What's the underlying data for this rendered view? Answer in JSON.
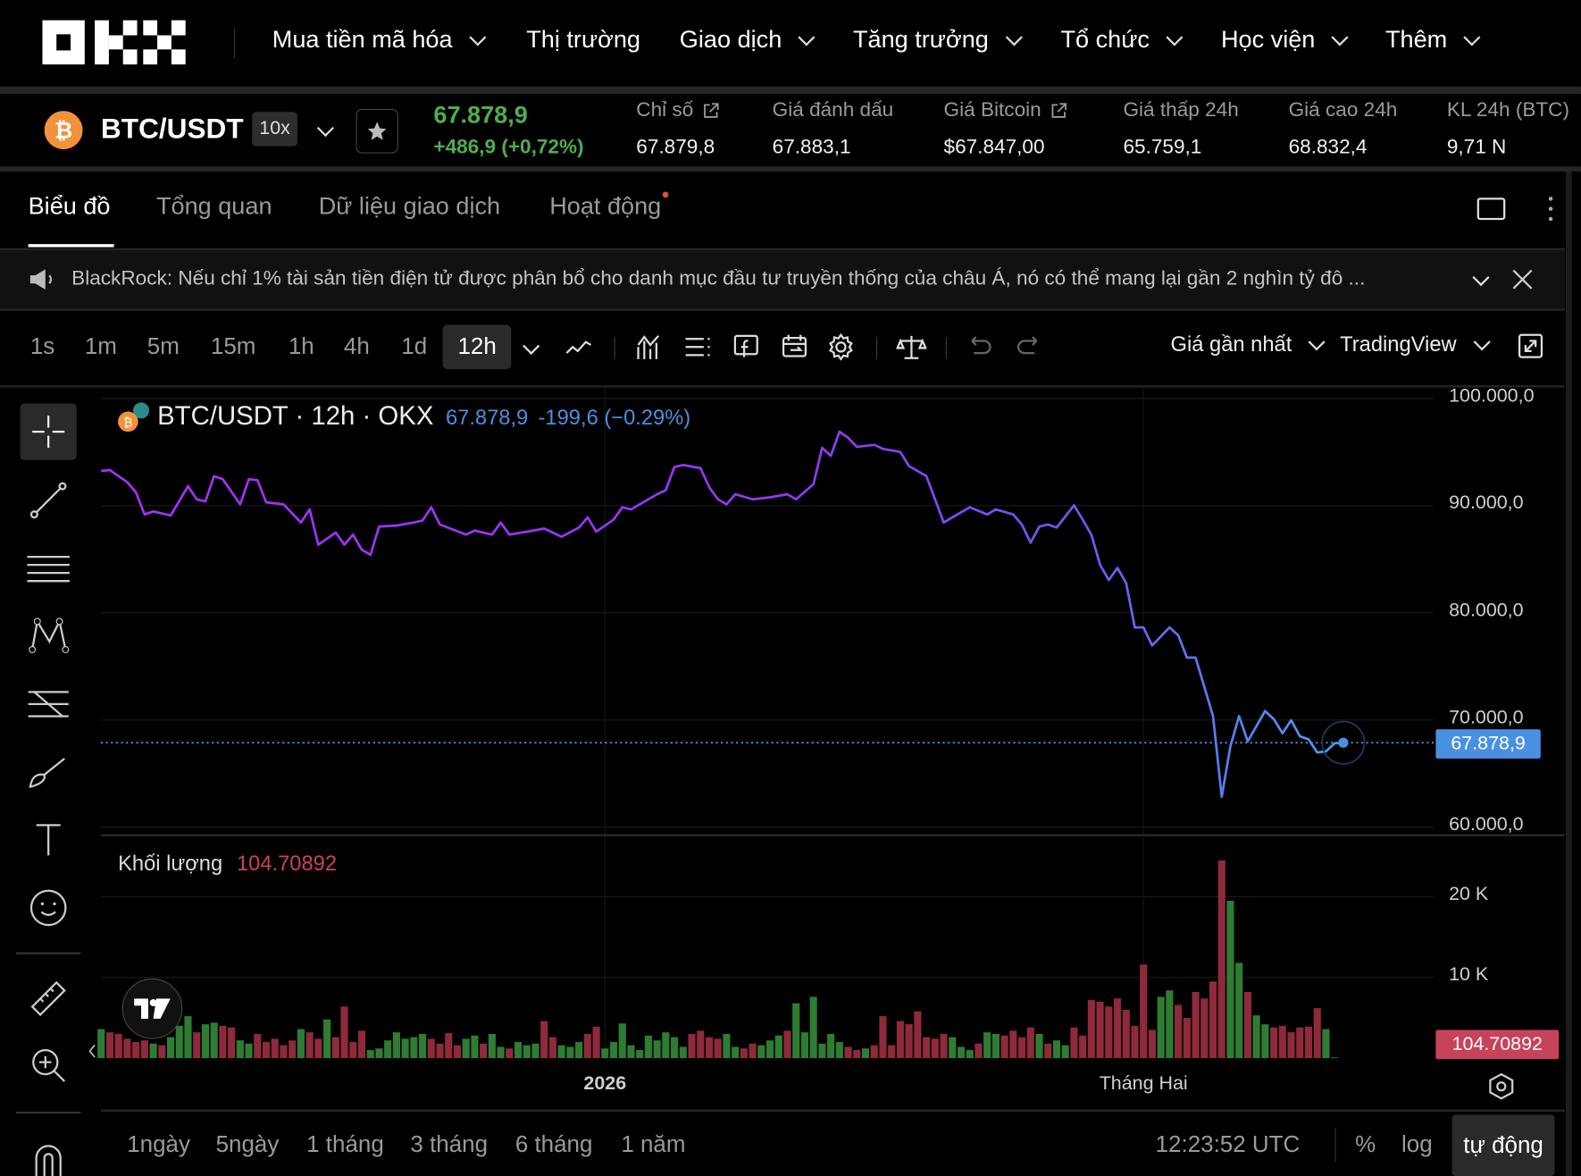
{
  "nav": {
    "logo": "OKX",
    "items": [
      {
        "label": "Mua tiền mã hóa",
        "dropdown": true
      },
      {
        "label": "Thị trường",
        "dropdown": false
      },
      {
        "label": "Giao dịch",
        "dropdown": true
      },
      {
        "label": "Tăng trưởng",
        "dropdown": true
      },
      {
        "label": "Tổ chức",
        "dropdown": true
      },
      {
        "label": "Học viện",
        "dropdown": true
      },
      {
        "label": "Thêm",
        "dropdown": true
      }
    ]
  },
  "ticker": {
    "pair": "BTC/USDT",
    "leverage": "10x",
    "price": "67.878,9",
    "change": "+486,9 (+0,72%)",
    "stats": [
      {
        "label": "Chỉ số",
        "value": "67.879,8",
        "external": true
      },
      {
        "label": "Giá đánh dấu",
        "value": "67.883,1",
        "external": false
      },
      {
        "label": "Giá Bitcoin",
        "value": "$67.847,00",
        "external": true
      },
      {
        "label": "Giá thấp 24h",
        "value": "65.759,1",
        "external": false
      },
      {
        "label": "Giá cao 24h",
        "value": "68.832,4",
        "external": false
      },
      {
        "label": "KL 24h (BTC)",
        "value": "9,71 N",
        "external": false
      }
    ]
  },
  "tabs": [
    {
      "label": "Biểu đồ",
      "active": true
    },
    {
      "label": "Tổng quan",
      "active": false
    },
    {
      "label": "Dữ liệu giao dịch",
      "active": false
    },
    {
      "label": "Hoạt động",
      "active": false,
      "dot": true
    }
  ],
  "announcement": {
    "text": "BlackRock: Nếu chỉ 1% tài sản tiền điện tử được phân bổ cho danh mục đầu tư truyền thống của châu Á, nó có thể mang lại gần 2 nghìn tỷ đô ..."
  },
  "toolbar": {
    "intervals": [
      "1s",
      "1m",
      "5m",
      "15m",
      "1h",
      "4h",
      "1d",
      "12h"
    ],
    "selected_interval": "12h",
    "price_type": "Giá gần nhất",
    "chart_provider": "TradingView"
  },
  "chart": {
    "legend_title": "BTC/USDT · 12h · OKX",
    "legend_price": "67.878,9",
    "legend_change": "-199,6 (−0.29%)",
    "price_axis_labels": [
      "100.000,0",
      "90.000,0",
      "80.000,0",
      "70.000,0",
      "60.000,0"
    ],
    "last_price_label": "67.878,9",
    "volume_title": "Khối lượng",
    "volume_value": "104.70892",
    "volume_axis_labels": [
      "20 K",
      "10 K"
    ],
    "time_axis_labels": [
      "2026",
      "Tháng Hai"
    ],
    "colors": {
      "line_start": "#a431f5",
      "line_end": "#4a9ff0",
      "last_price": "#4a90e2",
      "volume_up": "#2e7d32",
      "volume_down": "#8e2a3b",
      "volume_badge": "#c7435a"
    }
  },
  "chart_data": [
    {
      "type": "line",
      "title": "BTC/USDT · 12h · OKX",
      "ylim": [
        60000,
        100000
      ],
      "yticks": [
        60000,
        70000,
        80000,
        90000,
        100000
      ],
      "xticks": [
        "2026-01-01",
        "2026-02-01"
      ],
      "grid": true,
      "series": [
        {
          "name": "BTC/USDT",
          "points": [
            [
              "2025-12-03T00:00",
              93224
            ],
            [
              "2025-12-03T12:00",
              93318
            ],
            [
              "2025-12-04T12:00",
              92190
            ],
            [
              "2025-12-05T00:00",
              91250
            ],
            [
              "2025-12-05T12:00",
              89180
            ],
            [
              "2025-12-06T00:00",
              89460
            ],
            [
              "2025-12-07T00:00",
              89080
            ],
            [
              "2025-12-08T00:00",
              91810
            ],
            [
              "2025-12-08T12:00",
              90590
            ],
            [
              "2025-12-09T00:00",
              90400
            ],
            [
              "2025-12-09T12:00",
              92750
            ],
            [
              "2025-12-10T00:00",
              92470
            ],
            [
              "2025-12-11T00:00",
              90120
            ],
            [
              "2025-12-11T12:00",
              92470
            ],
            [
              "2025-12-12T00:00",
              92380
            ],
            [
              "2025-12-12T12:00",
              90310
            ],
            [
              "2025-12-13T12:00",
              90120
            ],
            [
              "2025-12-14T12:00",
              88420
            ],
            [
              "2025-12-15T00:00",
              89650
            ],
            [
              "2025-12-15T12:00",
              86350
            ],
            [
              "2025-12-16T12:00",
              87480
            ],
            [
              "2025-12-17T00:00",
              86350
            ],
            [
              "2025-12-17T12:00",
              87290
            ],
            [
              "2025-12-18T00:00",
              85880
            ],
            [
              "2025-12-18T12:00",
              85410
            ],
            [
              "2025-12-19T00:00",
              88050
            ],
            [
              "2025-12-20T00:00",
              88140
            ],
            [
              "2025-12-21T00:00",
              88420
            ],
            [
              "2025-12-21T12:00",
              88610
            ],
            [
              "2025-12-22T00:00",
              89840
            ],
            [
              "2025-12-22T12:00",
              88240
            ],
            [
              "2025-12-24T00:00",
              87290
            ],
            [
              "2025-12-24T12:00",
              87670
            ],
            [
              "2025-12-25T12:00",
              87290
            ],
            [
              "2025-12-26T00:00",
              88420
            ],
            [
              "2025-12-26T12:00",
              87290
            ],
            [
              "2025-12-27T12:00",
              87570
            ],
            [
              "2025-12-28T12:00",
              87860
            ],
            [
              "2025-12-29T12:00",
              87100
            ],
            [
              "2025-12-30T12:00",
              87950
            ],
            [
              "2025-12-31T00:00",
              88900
            ],
            [
              "2025-12-31T12:00",
              87570
            ],
            [
              "2026-01-01T12:00",
              88700
            ],
            [
              "2026-01-02T00:00",
              89840
            ],
            [
              "2026-01-02T12:00",
              89650
            ],
            [
              "2026-01-04T00:00",
              91060
            ],
            [
              "2026-01-04T12:00",
              91440
            ],
            [
              "2026-01-05T00:00",
              93600
            ],
            [
              "2026-01-05T12:00",
              93790
            ],
            [
              "2026-01-06T12:00",
              93500
            ],
            [
              "2026-01-07T00:00",
              91720
            ],
            [
              "2026-01-07T12:00",
              90590
            ],
            [
              "2026-01-08T00:00",
              90120
            ],
            [
              "2026-01-08T12:00",
              91060
            ],
            [
              "2026-01-09T12:00",
              90590
            ],
            [
              "2026-01-10T12:00",
              90780
            ],
            [
              "2026-01-11T12:00",
              91060
            ],
            [
              "2026-01-12T00:00",
              90590
            ],
            [
              "2026-01-13T00:00",
              92000
            ],
            [
              "2026-01-13T12:00",
              95390
            ],
            [
              "2026-01-14T00:00",
              94640
            ],
            [
              "2026-01-14T12:00",
              96890
            ],
            [
              "2026-01-15T00:00",
              96330
            ],
            [
              "2026-01-15T12:00",
              95480
            ],
            [
              "2026-01-16T12:00",
              95670
            ],
            [
              "2026-01-17T00:00",
              95290
            ],
            [
              "2026-01-18T00:00",
              95010
            ],
            [
              "2026-01-18T12:00",
              93690
            ],
            [
              "2026-01-19T12:00",
              92750
            ],
            [
              "2026-01-20T12:00",
              88420
            ],
            [
              "2026-01-21T00:00",
              88900
            ],
            [
              "2026-01-22T00:00",
              89840
            ],
            [
              "2026-01-23T00:00",
              89180
            ],
            [
              "2026-01-23T12:00",
              89650
            ],
            [
              "2026-01-24T12:00",
              89180
            ],
            [
              "2026-01-25T00:00",
              88240
            ],
            [
              "2026-01-25T12:00",
              86540
            ],
            [
              "2026-01-26T00:00",
              88050
            ],
            [
              "2026-01-26T12:00",
              88240
            ],
            [
              "2026-01-27T00:00",
              87950
            ],
            [
              "2026-01-28T00:00",
              90030
            ],
            [
              "2026-01-28T12:00",
              88700
            ],
            [
              "2026-01-29T00:00",
              87290
            ],
            [
              "2026-01-29T12:00",
              84470
            ],
            [
              "2026-01-30T00:00",
              83060
            ],
            [
              "2026-01-30T12:00",
              84190
            ],
            [
              "2026-01-31T00:00",
              82780
            ],
            [
              "2026-01-31T12:00",
              78640
            ],
            [
              "2026-02-01T00:00",
              78640
            ],
            [
              "2026-02-01T12:00",
              76950
            ],
            [
              "2026-02-02T12:00",
              78640
            ],
            [
              "2026-02-03T00:00",
              77890
            ],
            [
              "2026-02-03T12:00",
              75820
            ],
            [
              "2026-02-04T00:00",
              75820
            ],
            [
              "2026-02-05T00:00",
              70360
            ],
            [
              "2026-02-05T12:00",
              62830
            ],
            [
              "2026-02-06T00:00",
              67540
            ],
            [
              "2026-02-06T12:00",
              70360
            ],
            [
              "2026-02-07T00:00",
              68010
            ],
            [
              "2026-02-08T00:00",
              70830
            ],
            [
              "2026-02-08T12:00",
              70080
            ],
            [
              "2026-02-09T00:00",
              68760
            ],
            [
              "2026-02-09T12:00",
              69980
            ],
            [
              "2026-02-10T00:00",
              68480
            ],
            [
              "2026-02-10T12:00",
              68200
            ],
            [
              "2026-02-11T00:00",
              66970
            ],
            [
              "2026-02-11T12:00",
              67070
            ],
            [
              "2026-02-12T00:00",
              67820
            ],
            [
              "2026-02-12T12:00",
              67879
            ]
          ]
        }
      ],
      "last_price": 67878.9
    },
    {
      "type": "bar",
      "title": "Khối lượng",
      "unit": "K",
      "ylim": [
        0,
        27
      ],
      "yticks": [
        10,
        20
      ],
      "start": "2025-12-03T00:00",
      "interval_hours": 12,
      "values": [
        3.6,
        3.2,
        3.0,
        2.4,
        2.0,
        2.2,
        1.8,
        1.6,
        2.6,
        4.0,
        5.2,
        3.2,
        4.2,
        4.4,
        4.0,
        3.8,
        2.2,
        1.8,
        3.0,
        2.0,
        2.4,
        1.6,
        2.2,
        3.6,
        3.2,
        2.4,
        4.8,
        2.6,
        6.4,
        2.0,
        3.4,
        1.0,
        1.2,
        2.2,
        3.2,
        2.4,
        2.6,
        3.0,
        2.4,
        1.8,
        3.1,
        1.6,
        2.4,
        2.8,
        1.8,
        3.0,
        1.4,
        1.2,
        2.0,
        1.6,
        1.8,
        4.6,
        2.6,
        1.6,
        1.4,
        2.0,
        3.0,
        3.9,
        1.2,
        2.0,
        4.3,
        1.6,
        1.0,
        2.8,
        2.2,
        3.2,
        2.6,
        1.4,
        3.0,
        3.4,
        2.6,
        2.4,
        3.0,
        1.4,
        1.2,
        1.8,
        1.6,
        2.2,
        2.8,
        3.4,
        6.8,
        3.2,
        7.6,
        1.8,
        3.0,
        2.0,
        1.4,
        1.0,
        1.2,
        1.6,
        5.2,
        1.6,
        4.6,
        4.2,
        5.8,
        2.6,
        2.4,
        3.0,
        2.6,
        1.4,
        1.0,
        1.8,
        3.2,
        3.0,
        2.8,
        3.4,
        2.6,
        3.8,
        3.0,
        1.8,
        2.2,
        1.6,
        3.8,
        2.8,
        7.2,
        7.0,
        6.4,
        7.4,
        6.0,
        4.0,
        11.6,
        3.5,
        7.6,
        8.4,
        6.6,
        5.0,
        8.2,
        7.4,
        9.5,
        24.5,
        19.5,
        11.8,
        8.2,
        5.3,
        4.2,
        3.8,
        4.0,
        3.2,
        3.8,
        3.9,
        6.2,
        3.6,
        0.1
      ]
    }
  ],
  "bottom": {
    "ranges": [
      "1ngày",
      "5ngày",
      "1 tháng",
      "3 tháng",
      "6 tháng",
      "1 năm"
    ],
    "clock": "12:23:52 UTC",
    "percent": "%",
    "log": "log",
    "auto": "tự động"
  }
}
